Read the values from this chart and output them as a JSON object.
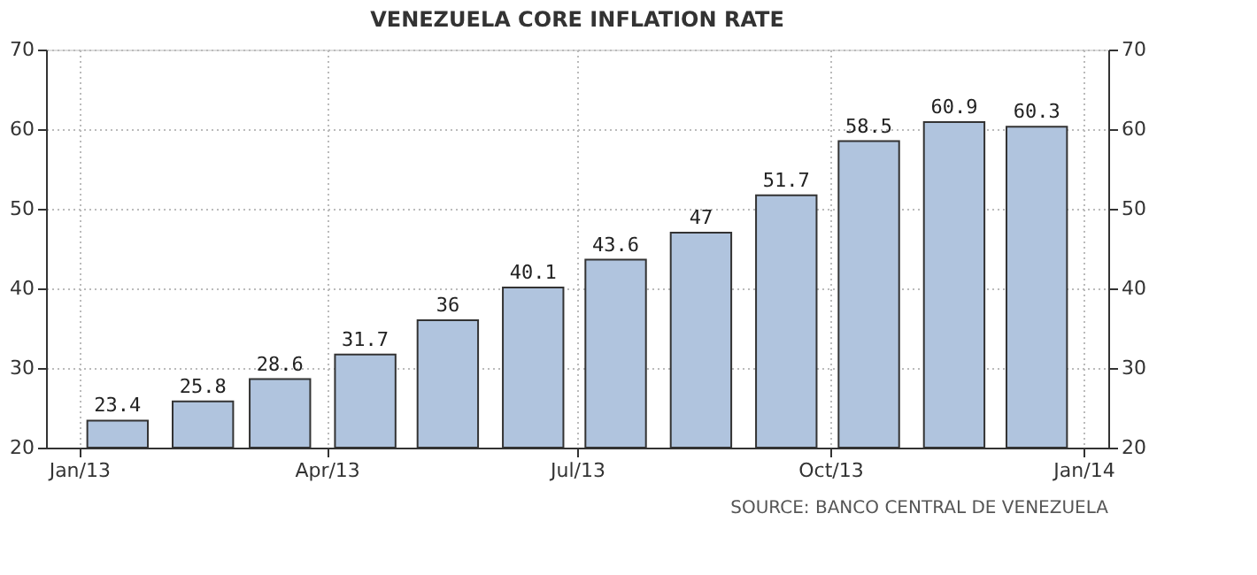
{
  "chart_data": {
    "type": "bar",
    "title": "VENEZUELA CORE INFLATION RATE",
    "x": [
      "2013-01-15",
      "2013-02-15",
      "2013-03-15",
      "2013-04-15",
      "2013-05-15",
      "2013-06-15",
      "2013-07-15",
      "2013-08-15",
      "2013-09-15",
      "2013-10-15",
      "2013-11-15",
      "2013-12-15"
    ],
    "values": [
      23.4,
      25.8,
      28.6,
      31.7,
      36,
      40.1,
      43.6,
      47,
      51.7,
      58.5,
      60.9,
      60.3
    ],
    "color": "#b0c4de",
    "data_labels": true,
    "xlim": [
      "2012-12-20",
      "2014-01-10"
    ],
    "xticks": [
      {
        "value": "2013-01",
        "label": "Jan/13"
      },
      {
        "value": "2013-04",
        "label": "Apr/13"
      },
      {
        "value": "2013-07",
        "label": "Jul/13"
      },
      {
        "value": "2013-10",
        "label": "Oct/13"
      },
      {
        "value": "2014-01",
        "label": "Jan/14"
      }
    ],
    "ylim": [
      20,
      70
    ],
    "yticks": [
      20,
      30,
      40,
      50,
      60,
      70
    ],
    "y2lim": [
      20,
      70
    ],
    "y2ticks": [
      20,
      30,
      40,
      50,
      60,
      70
    ],
    "grid": true,
    "annotations": [
      "SOURCE: BANCO CENTRAL DE VENEZUELA"
    ]
  }
}
